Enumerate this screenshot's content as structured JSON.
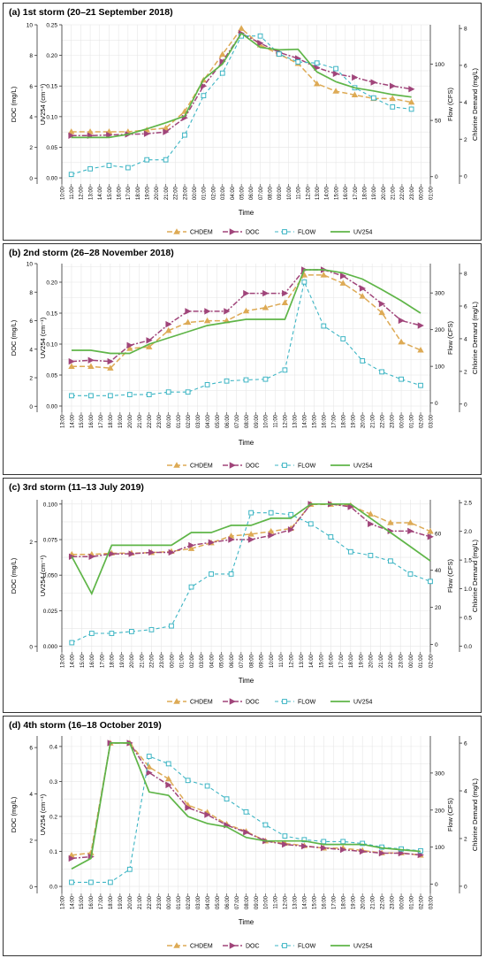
{
  "colors": {
    "CHDEM": "#DDAA55",
    "DOC": "#A0457A",
    "FLOW": "#3DB5C4",
    "UV254": "#5FB548"
  },
  "legend": [
    "CHDEM",
    "DOC",
    "FLOW",
    "UV254"
  ],
  "chart_data": [
    {
      "type": "line",
      "title": "(a) 1st storm (20–21 September 2018)",
      "xlabel": "Time",
      "ylabel_doc": "DOC (mg/L)",
      "ylabel_uv": "UV254 (cm⁻¹)",
      "ylabel_flow": "Flow (CFS)",
      "ylabel_chdem": "Chlorine Demand (mg/L)",
      "x_ticks": [
        "10:00",
        "11:00",
        "12:00",
        "13:00",
        "14:00",
        "15:00",
        "16:00",
        "17:00",
        "18:00",
        "19:00",
        "20:00",
        "21:00",
        "22:00",
        "23:00",
        "00:00",
        "01:00",
        "02:00",
        "03:00",
        "04:00",
        "05:00",
        "06:00",
        "07:00",
        "08:00",
        "09:00",
        "10:00",
        "11:00",
        "12:00",
        "13:00",
        "14:00",
        "15:00",
        "16:00",
        "17:00",
        "18:00",
        "19:00",
        "20:00",
        "21:00",
        "22:00",
        "23:00",
        "00:00",
        "01:00"
      ],
      "x_range": [
        0,
        39
      ],
      "uv_range": [
        -0.01,
        0.25
      ],
      "uv_ticks": [
        "0.00",
        "0.05",
        "0.10",
        "0.15",
        "0.20",
        "0.25"
      ],
      "doc_ticks": [
        "0",
        "2",
        "4",
        "6",
        "8",
        "10"
      ],
      "doc_max": 10,
      "flow_range": [
        -6.5,
        135
      ],
      "flow_ticks": [
        "0",
        "50",
        "100"
      ],
      "chdem_range": [
        -0.43,
        8.2
      ],
      "chdem_ticks": [
        "0",
        "2",
        "4",
        "6",
        "8"
      ],
      "series": [
        {
          "name": "CHDEM",
          "x": [
            1,
            3,
            5,
            7,
            9,
            11,
            13,
            15,
            17,
            19,
            21,
            23,
            25,
            27,
            29,
            31,
            33,
            35,
            37
          ],
          "y": [
            2.4,
            2.4,
            2.4,
            2.4,
            2.5,
            2.6,
            3.5,
            5.2,
            6.6,
            8.0,
            7.1,
            6.6,
            6.1,
            5.0,
            4.6,
            4.4,
            4.2,
            4.2,
            4.0
          ]
        },
        {
          "name": "DOC",
          "x": [
            1,
            3,
            5,
            7,
            9,
            11,
            13,
            15,
            17,
            19,
            21,
            23,
            25,
            27,
            29,
            31,
            33,
            35,
            37
          ],
          "y": [
            0.069,
            0.069,
            0.07,
            0.071,
            0.072,
            0.075,
            0.098,
            0.15,
            0.19,
            0.236,
            0.22,
            0.205,
            0.195,
            0.18,
            0.17,
            0.164,
            0.156,
            0.15,
            0.145
          ]
        },
        {
          "name": "FLOW",
          "x": [
            1,
            3,
            5,
            7,
            9,
            11,
            13,
            15,
            17,
            19,
            21,
            23,
            25,
            27,
            29,
            31,
            33,
            35,
            37
          ],
          "y": [
            2,
            7,
            10,
            8,
            15,
            15,
            37,
            72,
            92,
            125,
            125,
            109,
            102,
            101,
            96,
            79,
            70,
            62,
            60
          ]
        },
        {
          "name": "UV254",
          "x": [
            1,
            3,
            5,
            7,
            9,
            11,
            13,
            15,
            17,
            19,
            21,
            23,
            25,
            27,
            29,
            31,
            33,
            35,
            37
          ],
          "y": [
            0.066,
            0.066,
            0.066,
            0.071,
            0.08,
            0.09,
            0.101,
            0.161,
            0.186,
            0.236,
            0.213,
            0.209,
            0.21,
            0.173,
            0.157,
            0.147,
            0.142,
            0.136,
            0.132
          ]
        }
      ]
    },
    {
      "type": "line",
      "title": "(b) 2nd storm (26–28 November 2018)",
      "xlabel": "Time",
      "ylabel_doc": "DOC (mg/L)",
      "ylabel_uv": "UV254 (cm⁻¹)",
      "ylabel_flow": "Flow (CFS)",
      "ylabel_chdem": "Chlorine Demand (mg/L)",
      "x_ticks": [
        "13:00",
        "14:00",
        "15:00",
        "16:00",
        "17:00",
        "18:00",
        "19:00",
        "20:00",
        "21:00",
        "22:00",
        "23:00",
        "00:00",
        "01:00",
        "02:00",
        "03:00",
        "04:00",
        "05:00",
        "06:00",
        "07:00",
        "08:00",
        "09:00",
        "10:00",
        "11:00",
        "12:00",
        "13:00",
        "14:00",
        "15:00",
        "16:00",
        "17:00",
        "18:00",
        "19:00",
        "20:00",
        "21:00",
        "22:00",
        "23:00",
        "00:00",
        "01:00",
        "02:00",
        "03:00"
      ],
      "x_range": [
        0,
        38
      ],
      "uv_range": [
        -0.01,
        0.23
      ],
      "uv_ticks": [
        "0.00",
        "0.05",
        "0.10",
        "0.15",
        "0.20"
      ],
      "doc_ticks": [
        "0",
        "2",
        "4",
        "6",
        "8",
        "10"
      ],
      "doc_max": 10,
      "flow_range": [
        -25,
        380
      ],
      "flow_ticks": [
        "0",
        "100",
        "200",
        "300"
      ],
      "chdem_range": [
        -0.5,
        8.6
      ],
      "chdem_ticks": [
        "0",
        "2",
        "4",
        "6",
        "8"
      ],
      "series": [
        {
          "name": "CHDEM",
          "x": [
            1,
            3,
            5,
            7,
            9,
            11,
            13,
            15,
            17,
            19,
            21,
            23,
            25,
            27,
            29,
            31,
            33,
            35,
            37
          ],
          "y": [
            2.3,
            2.3,
            2.2,
            3.4,
            3.5,
            4.5,
            5.0,
            5.1,
            5.1,
            5.7,
            5.9,
            6.2,
            7.9,
            7.9,
            7.4,
            6.6,
            5.6,
            3.8,
            3.3
          ]
        },
        {
          "name": "DOC",
          "x": [
            1,
            3,
            5,
            7,
            9,
            11,
            13,
            15,
            17,
            19,
            21,
            23,
            25,
            27,
            29,
            31,
            33,
            35,
            37
          ],
          "y": [
            0.072,
            0.074,
            0.072,
            0.098,
            0.106,
            0.132,
            0.153,
            0.153,
            0.153,
            0.182,
            0.182,
            0.182,
            0.22,
            0.22,
            0.21,
            0.19,
            0.165,
            0.138,
            0.13
          ]
        },
        {
          "name": "FLOW",
          "x": [
            1,
            3,
            5,
            7,
            9,
            11,
            13,
            15,
            17,
            19,
            21,
            23,
            25,
            27,
            29,
            31,
            33,
            35,
            37
          ],
          "y": [
            20,
            20,
            20,
            23,
            23,
            30,
            30,
            50,
            60,
            63,
            65,
            90,
            330,
            210,
            175,
            115,
            85,
            65,
            48
          ]
        },
        {
          "name": "UV254",
          "x": [
            1,
            3,
            5,
            7,
            9,
            11,
            13,
            15,
            17,
            19,
            21,
            23,
            25,
            27,
            29,
            31,
            33,
            35,
            37
          ],
          "y": [
            0.09,
            0.09,
            0.085,
            0.085,
            0.1,
            0.11,
            0.12,
            0.13,
            0.135,
            0.14,
            0.14,
            0.14,
            0.22,
            0.22,
            0.215,
            0.205,
            0.188,
            0.17,
            0.15
          ]
        }
      ]
    },
    {
      "type": "line",
      "title": "(c) 3rd storm (11–13 July 2019)",
      "xlabel": "Time",
      "ylabel_doc": "DOC (mg/L)",
      "ylabel_uv": "UV254 (cm⁻¹)",
      "ylabel_flow": "Flow (CFS)",
      "ylabel_chdem": "Chlorine Demand (mg/L)",
      "x_ticks": [
        "13:00",
        "14:00",
        "15:00",
        "16:00",
        "17:00",
        "18:00",
        "19:00",
        "20:00",
        "21:00",
        "22:00",
        "23:00",
        "00:00",
        "01:00",
        "02:00",
        "03:00",
        "04:00",
        "05:00",
        "06:00",
        "07:00",
        "08:00",
        "09:00",
        "10:00",
        "11:00",
        "12:00",
        "13:00",
        "14:00",
        "15:00",
        "16:00",
        "17:00",
        "18:00",
        "19:00",
        "20:00",
        "21:00",
        "22:00",
        "23:00",
        "00:00",
        "01:00",
        "02:00"
      ],
      "x_range": [
        0,
        37
      ],
      "uv_range": [
        -0.004,
        0.103
      ],
      "uv_ticks": [
        "0.000",
        "0.025",
        "0.050",
        "0.075",
        "0.100"
      ],
      "doc_ticks": [
        "0",
        "2"
      ],
      "doc_max": 2.8,
      "flow_range": [
        -4,
        78
      ],
      "flow_ticks": [
        "0",
        "20",
        "40",
        "60"
      ],
      "chdem_range": [
        -0.1,
        2.55
      ],
      "chdem_ticks": [
        "0.0",
        "0.5",
        "1.0",
        "1.5",
        "2.0",
        "2.5"
      ],
      "series": [
        {
          "name": "CHDEM",
          "x": [
            1,
            3,
            5,
            7,
            9,
            11,
            13,
            15,
            17,
            19,
            21,
            23,
            25,
            27,
            29,
            31,
            33,
            35,
            37
          ],
          "y": [
            1.6,
            1.6,
            1.62,
            1.62,
            1.63,
            1.65,
            1.7,
            1.8,
            1.92,
            1.95,
            2.0,
            2.05,
            2.47,
            2.47,
            2.45,
            2.3,
            2.15,
            2.15,
            2.0
          ]
        },
        {
          "name": "DOC",
          "x": [
            1,
            3,
            5,
            7,
            9,
            11,
            13,
            15,
            17,
            19,
            21,
            23,
            25,
            27,
            29,
            31,
            33,
            35,
            37
          ],
          "y": [
            0.063,
            0.063,
            0.065,
            0.065,
            0.066,
            0.066,
            0.071,
            0.073,
            0.075,
            0.075,
            0.078,
            0.082,
            0.1,
            0.1,
            0.098,
            0.086,
            0.081,
            0.081,
            0.077
          ]
        },
        {
          "name": "FLOW",
          "x": [
            1,
            3,
            5,
            7,
            9,
            11,
            13,
            15,
            17,
            19,
            21,
            23,
            25,
            27,
            29,
            31,
            33,
            35,
            37
          ],
          "y": [
            1,
            6,
            6,
            7,
            8,
            10,
            31,
            38,
            38,
            71,
            71,
            70,
            65,
            58,
            50,
            48,
            45,
            38,
            34
          ]
        },
        {
          "name": "UV254",
          "x": [
            1,
            3,
            5,
            7,
            9,
            11,
            13,
            15,
            17,
            19,
            21,
            23,
            25,
            27,
            29,
            31,
            33,
            35,
            37
          ],
          "y": [
            0.063,
            0.037,
            0.071,
            0.071,
            0.071,
            0.071,
            0.08,
            0.08,
            0.085,
            0.085,
            0.09,
            0.09,
            0.1,
            0.1,
            0.1,
            0.09,
            0.08,
            0.07,
            0.06
          ]
        }
      ]
    },
    {
      "type": "line",
      "title": "(d) 4th storm (16–18 October 2019)",
      "xlabel": "Time",
      "ylabel_doc": "DOC (mg/L)",
      "ylabel_uv": "UV254 (cm⁻¹)",
      "ylabel_flow": "Flow (CFS)",
      "ylabel_chdem": "Chlorine Demand (mg/L)",
      "x_ticks": [
        "13:00",
        "14:00",
        "15:00",
        "16:00",
        "17:00",
        "18:00",
        "19:00",
        "20:00",
        "21:00",
        "22:00",
        "23:00",
        "00:00",
        "01:00",
        "02:00",
        "03:00",
        "04:00",
        "05:00",
        "06:00",
        "07:00",
        "08:00",
        "09:00",
        "10:00",
        "11:00",
        "12:00",
        "13:00",
        "14:00",
        "15:00",
        "16:00",
        "17:00",
        "18:00",
        "19:00",
        "20:00",
        "21:00",
        "22:00",
        "23:00",
        "00:00",
        "01:00",
        "02:00",
        "03:00"
      ],
      "x_range": [
        0,
        38
      ],
      "uv_range": [
        -0.02,
        0.43
      ],
      "uv_ticks": [
        "0.0",
        "0.1",
        "0.2",
        "0.3",
        "0.4"
      ],
      "doc_ticks": [
        "0",
        "2",
        "4",
        "6"
      ],
      "doc_max": 6.5,
      "flow_range": [
        -25,
        400
      ],
      "flow_ticks": [
        "0",
        "100",
        "200",
        "300"
      ],
      "chdem_range": [
        -0.3,
        6.3
      ],
      "chdem_ticks": [
        "0",
        "2",
        "4",
        "6"
      ],
      "series": [
        {
          "name": "CHDEM",
          "x": [
            1,
            3,
            5,
            7,
            9,
            11,
            13,
            15,
            17,
            19,
            21,
            23,
            25,
            27,
            29,
            31,
            33,
            35,
            37
          ],
          "y": [
            1.3,
            1.4,
            6.0,
            6.0,
            5.0,
            4.5,
            3.4,
            3.1,
            2.6,
            2.3,
            1.9,
            1.8,
            1.7,
            1.6,
            1.6,
            1.5,
            1.4,
            1.4,
            1.3
          ]
        },
        {
          "name": "DOC",
          "x": [
            1,
            3,
            5,
            7,
            9,
            11,
            13,
            15,
            17,
            19,
            21,
            23,
            25,
            27,
            29,
            31,
            33,
            35,
            37
          ],
          "y": [
            0.08,
            0.085,
            0.41,
            0.41,
            0.325,
            0.29,
            0.225,
            0.205,
            0.175,
            0.155,
            0.13,
            0.12,
            0.115,
            0.11,
            0.105,
            0.1,
            0.095,
            0.095,
            0.09
          ]
        },
        {
          "name": "FLOW",
          "x": [
            1,
            3,
            5,
            7,
            9,
            11,
            13,
            15,
            17,
            19,
            21,
            23,
            25,
            27,
            29,
            31,
            33,
            35,
            37
          ],
          "y": [
            5,
            5,
            5,
            40,
            345,
            325,
            280,
            265,
            230,
            195,
            160,
            130,
            120,
            115,
            115,
            110,
            100,
            95,
            90
          ]
        },
        {
          "name": "UV254",
          "x": [
            1,
            3,
            5,
            7,
            9,
            11,
            13,
            15,
            17,
            19,
            21,
            23,
            25,
            27,
            29,
            31,
            33,
            35,
            37
          ],
          "y": [
            0.05,
            0.08,
            0.41,
            0.41,
            0.27,
            0.26,
            0.2,
            0.18,
            0.17,
            0.14,
            0.13,
            0.13,
            0.13,
            0.12,
            0.12,
            0.12,
            0.11,
            0.105,
            0.1
          ]
        }
      ]
    }
  ]
}
